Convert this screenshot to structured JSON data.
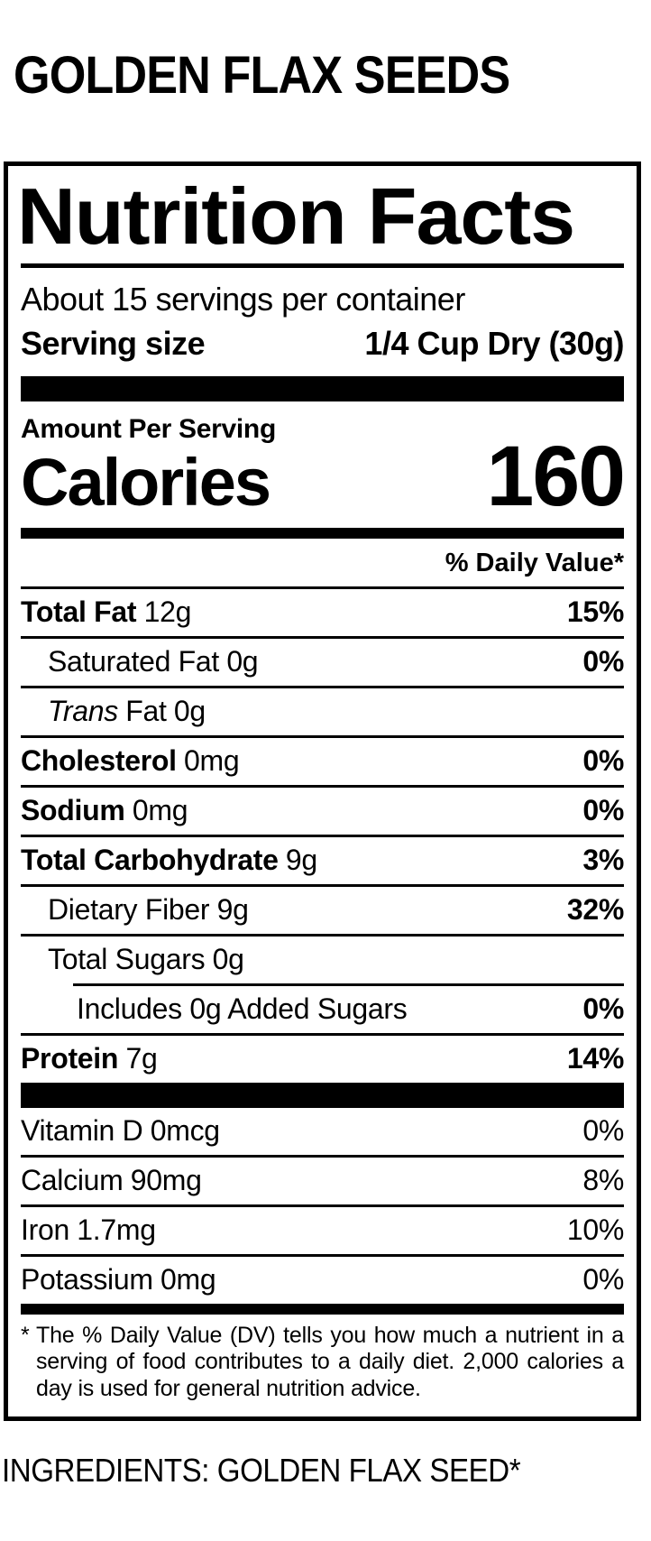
{
  "colors": {
    "ink": "#000000",
    "background": "#ffffff"
  },
  "page": {
    "product_title": "GOLDEN FLAX SEEDS",
    "ingredients_line": "INGREDIENTS: GOLDEN FLAX SEED*"
  },
  "label": {
    "title": "Nutrition Facts",
    "servings_per_container": "About 15 servings per container",
    "serving_size": {
      "label": "Serving size",
      "value": "1/4 Cup Dry (30g)"
    },
    "amount_per_serving": "Amount Per Serving",
    "calories": {
      "label": "Calories",
      "value": "160"
    },
    "daily_value_header": "% Daily Value*",
    "rows": [
      {
        "name": "Total Fat",
        "amount": "12g",
        "percent": "15%"
      },
      {
        "name": "Saturated Fat",
        "amount": "0g",
        "percent": "0%"
      },
      {
        "name_italic": "Trans",
        "name": "Fat",
        "amount": "0g",
        "percent": ""
      },
      {
        "name": "Cholesterol",
        "amount": "0mg",
        "percent": "0%"
      },
      {
        "name": "Sodium",
        "amount": "0mg",
        "percent": "0%"
      },
      {
        "name": "Total Carbohydrate",
        "amount": "9g",
        "percent": "3%"
      },
      {
        "name": "Dietary Fiber",
        "amount": "9g",
        "percent": "32%"
      },
      {
        "name": "Total Sugars",
        "amount": "0g",
        "percent": ""
      },
      {
        "name": "Includes 0g Added Sugars",
        "amount": "",
        "percent": "0%"
      },
      {
        "name": "Protein",
        "amount": "7g",
        "percent": "14%"
      }
    ],
    "micronutrients": [
      {
        "name": "Vitamin D",
        "amount": "0mcg",
        "percent": "0%"
      },
      {
        "name": "Calcium",
        "amount": "90mg",
        "percent": "8%"
      },
      {
        "name": "Iron",
        "amount": "1.7mg",
        "percent": "10%"
      },
      {
        "name": "Potassium",
        "amount": "0mg",
        "percent": "0%"
      }
    ],
    "footnote_marker": "*",
    "footnote": "The % Daily Value (DV) tells you how much a nutrient in a serving of food contributes to a daily diet. 2,000 calories a day is used for general nutrition advice."
  }
}
